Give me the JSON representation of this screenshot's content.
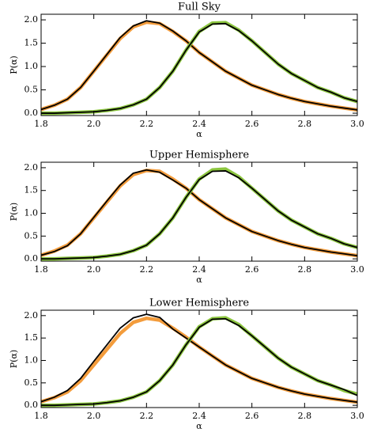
{
  "chart_data": [
    {
      "type": "line",
      "title": "Full Sky",
      "xlabel": "α",
      "ylabel": "P(α)",
      "x": [
        1.8,
        1.85,
        1.9,
        1.95,
        2.0,
        2.05,
        2.1,
        2.15,
        2.2,
        2.25,
        2.3,
        2.35,
        2.4,
        2.45,
        2.5,
        2.55,
        2.6,
        2.65,
        2.7,
        2.75,
        2.8,
        2.85,
        2.9,
        2.95,
        3.0
      ],
      "series": [
        {
          "color": "#f39c3c",
          "values": [
            0.08,
            0.17,
            0.3,
            0.55,
            0.9,
            1.25,
            1.6,
            1.85,
            1.95,
            1.92,
            1.75,
            1.55,
            1.3,
            1.1,
            0.9,
            0.75,
            0.6,
            0.5,
            0.4,
            0.32,
            0.25,
            0.2,
            0.15,
            0.11,
            0.07
          ]
        },
        {
          "color": "#000000",
          "values": [
            0.08,
            0.17,
            0.3,
            0.55,
            0.9,
            1.26,
            1.62,
            1.87,
            1.98,
            1.93,
            1.76,
            1.55,
            1.3,
            1.1,
            0.9,
            0.75,
            0.6,
            0.5,
            0.4,
            0.32,
            0.25,
            0.2,
            0.15,
            0.11,
            0.07
          ]
        },
        {
          "color": "#8cc63f",
          "values": [
            0.0,
            0.0,
            0.01,
            0.02,
            0.03,
            0.06,
            0.1,
            0.18,
            0.3,
            0.55,
            0.9,
            1.35,
            1.75,
            1.93,
            1.94,
            1.78,
            1.55,
            1.3,
            1.05,
            0.85,
            0.7,
            0.55,
            0.45,
            0.33,
            0.25
          ]
        },
        {
          "color": "#000000",
          "values": [
            0.0,
            0.0,
            0.01,
            0.02,
            0.03,
            0.06,
            0.1,
            0.18,
            0.3,
            0.55,
            0.9,
            1.35,
            1.74,
            1.91,
            1.92,
            1.77,
            1.55,
            1.3,
            1.05,
            0.85,
            0.7,
            0.55,
            0.45,
            0.33,
            0.25
          ]
        }
      ],
      "xlim": [
        1.8,
        3.0
      ],
      "xticks": [
        1.8,
        {
          "value": 2.0,
          "label": "2.0"
        },
        2.2,
        2.4,
        2.6,
        2.8,
        {
          "value": 3.0,
          "label": "3.0"
        }
      ],
      "ylim": [
        -0.05,
        2.12
      ],
      "yticks": [
        {
          "value": 0,
          "label": "0.0"
        },
        0.5,
        {
          "value": 1,
          "label": "1.0"
        },
        1.5,
        {
          "value": 2,
          "label": "2.0"
        }
      ]
    },
    {
      "type": "line",
      "title": "Upper Hemisphere",
      "xlabel": "α",
      "ylabel": "P(α)",
      "x": [
        1.8,
        1.85,
        1.9,
        1.95,
        2.0,
        2.05,
        2.1,
        2.15,
        2.2,
        2.25,
        2.3,
        2.35,
        2.4,
        2.45,
        2.5,
        2.55,
        2.6,
        2.65,
        2.7,
        2.75,
        2.8,
        2.85,
        2.9,
        2.95,
        3.0
      ],
      "series": [
        {
          "color": "#f39c3c",
          "values": [
            0.08,
            0.17,
            0.3,
            0.55,
            0.9,
            1.25,
            1.6,
            1.85,
            1.94,
            1.92,
            1.75,
            1.55,
            1.3,
            1.1,
            0.9,
            0.75,
            0.6,
            0.5,
            0.4,
            0.32,
            0.25,
            0.2,
            0.15,
            0.11,
            0.07
          ]
        },
        {
          "color": "#000000",
          "values": [
            0.08,
            0.16,
            0.29,
            0.55,
            0.91,
            1.27,
            1.62,
            1.88,
            1.95,
            1.9,
            1.73,
            1.55,
            1.3,
            1.1,
            0.9,
            0.75,
            0.6,
            0.5,
            0.4,
            0.32,
            0.25,
            0.2,
            0.15,
            0.11,
            0.07
          ]
        },
        {
          "color": "#8cc63f",
          "values": [
            0.0,
            0.0,
            0.01,
            0.02,
            0.03,
            0.06,
            0.1,
            0.18,
            0.3,
            0.55,
            0.9,
            1.35,
            1.75,
            1.95,
            1.97,
            1.8,
            1.55,
            1.3,
            1.05,
            0.85,
            0.7,
            0.55,
            0.45,
            0.33,
            0.25
          ]
        },
        {
          "color": "#000000",
          "values": [
            0.0,
            0.0,
            0.01,
            0.02,
            0.03,
            0.06,
            0.1,
            0.18,
            0.3,
            0.55,
            0.9,
            1.35,
            1.74,
            1.92,
            1.93,
            1.78,
            1.55,
            1.3,
            1.05,
            0.85,
            0.7,
            0.55,
            0.45,
            0.33,
            0.25
          ]
        }
      ],
      "xlim": [
        1.8,
        3.0
      ],
      "xticks": [
        1.8,
        {
          "value": 2.0,
          "label": "2.0"
        },
        2.2,
        2.4,
        2.6,
        2.8,
        {
          "value": 3.0,
          "label": "3.0"
        }
      ],
      "ylim": [
        -0.05,
        2.12
      ],
      "yticks": [
        {
          "value": 0,
          "label": "0.0"
        },
        0.5,
        {
          "value": 1,
          "label": "1.0"
        },
        1.5,
        {
          "value": 2,
          "label": "2.0"
        }
      ]
    },
    {
      "type": "line",
      "title": "Lower Hemisphere",
      "xlabel": "α",
      "ylabel": "P(α)",
      "x": [
        1.8,
        1.85,
        1.9,
        1.95,
        2.0,
        2.05,
        2.1,
        2.15,
        2.2,
        2.25,
        2.3,
        2.35,
        2.4,
        2.45,
        2.5,
        2.55,
        2.6,
        2.65,
        2.7,
        2.75,
        2.8,
        2.85,
        2.9,
        2.95,
        3.0
      ],
      "series": [
        {
          "color": "#f39c3c",
          "values": [
            0.08,
            0.17,
            0.3,
            0.55,
            0.9,
            1.25,
            1.6,
            1.85,
            1.94,
            1.9,
            1.72,
            1.52,
            1.3,
            1.1,
            0.9,
            0.75,
            0.6,
            0.5,
            0.4,
            0.32,
            0.25,
            0.2,
            0.15,
            0.11,
            0.07
          ]
        },
        {
          "color": "#000000",
          "values": [
            0.08,
            0.18,
            0.33,
            0.6,
            0.98,
            1.35,
            1.72,
            1.95,
            2.03,
            1.96,
            1.7,
            1.5,
            1.3,
            1.1,
            0.9,
            0.75,
            0.6,
            0.5,
            0.4,
            0.32,
            0.25,
            0.2,
            0.15,
            0.11,
            0.07
          ]
        },
        {
          "color": "#8cc63f",
          "values": [
            0.0,
            0.0,
            0.01,
            0.02,
            0.03,
            0.06,
            0.1,
            0.18,
            0.3,
            0.55,
            0.9,
            1.35,
            1.75,
            1.93,
            1.95,
            1.8,
            1.55,
            1.3,
            1.05,
            0.85,
            0.7,
            0.55,
            0.45,
            0.33,
            0.25
          ]
        },
        {
          "color": "#000000",
          "values": [
            0.0,
            0.0,
            0.01,
            0.02,
            0.03,
            0.06,
            0.1,
            0.18,
            0.3,
            0.55,
            0.9,
            1.35,
            1.74,
            1.92,
            1.93,
            1.78,
            1.55,
            1.3,
            1.05,
            0.85,
            0.7,
            0.55,
            0.45,
            0.35,
            0.22
          ]
        }
      ],
      "xlim": [
        1.8,
        3.0
      ],
      "xticks": [
        1.8,
        {
          "value": 2.0,
          "label": "2.0"
        },
        2.2,
        2.4,
        2.6,
        2.8,
        {
          "value": 3.0,
          "label": "3.0"
        }
      ],
      "ylim": [
        -0.05,
        2.12
      ],
      "yticks": [
        {
          "value": 0,
          "label": "0.0"
        },
        0.5,
        {
          "value": 1,
          "label": "1.0"
        },
        1.5,
        {
          "value": 2,
          "label": "2.0"
        }
      ]
    }
  ]
}
